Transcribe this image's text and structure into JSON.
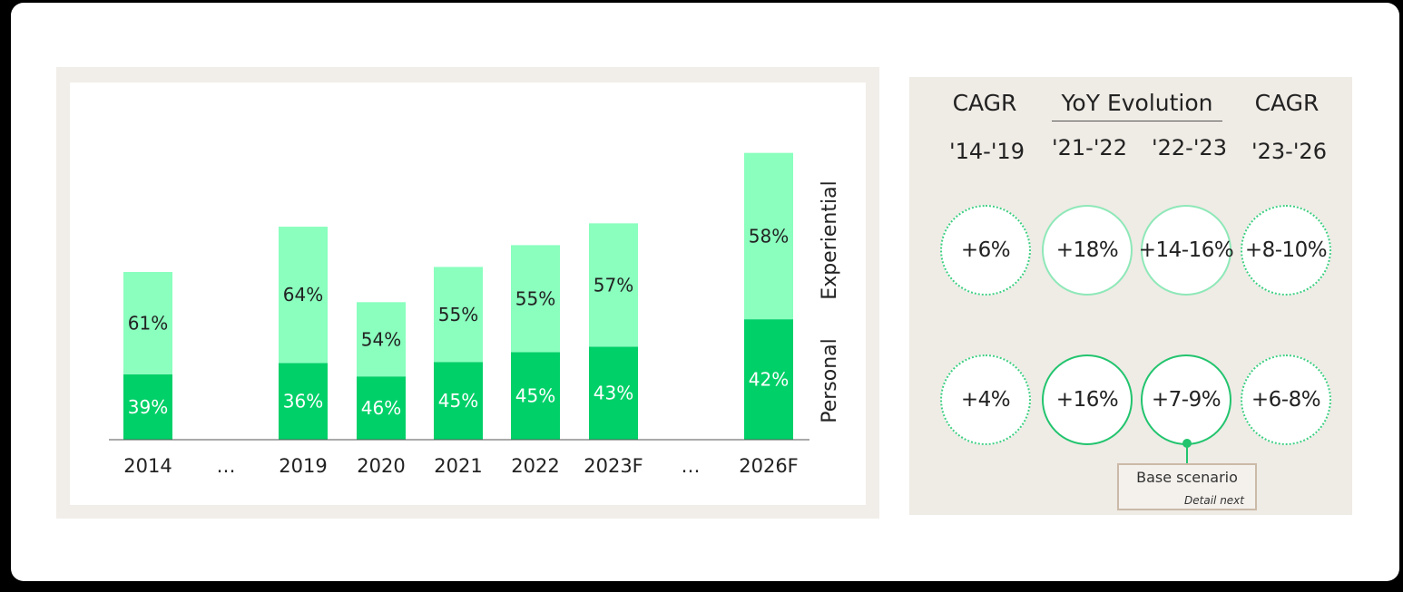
{
  "chart_data": {
    "type": "bar",
    "stacked": true,
    "categories": [
      "2014",
      "…",
      "2019",
      "2020",
      "2021",
      "2022",
      "2023F",
      "…",
      "2026F"
    ],
    "series": [
      {
        "name": "Personal",
        "color": "#00d068",
        "labels": [
          "39%",
          "",
          "36%",
          "46%",
          "45%",
          "45%",
          "43%",
          "",
          "42%"
        ],
        "values": [
          39,
          null,
          36,
          46,
          45,
          45,
          43,
          null,
          42
        ]
      },
      {
        "name": "Experiential",
        "color": "#8affbe",
        "labels": [
          "61%",
          "",
          "64%",
          "54%",
          "55%",
          "55%",
          "57%",
          "",
          "58%"
        ],
        "values": [
          61,
          null,
          64,
          54,
          55,
          55,
          57,
          null,
          58
        ]
      }
    ],
    "relative_totals": [
      100,
      null,
      127,
      82,
      103,
      116,
      129,
      null,
      171
    ],
    "title": "",
    "xlabel": "",
    "ylabel": ""
  },
  "stats": {
    "headers": {
      "cagr_left": "CAGR",
      "yoy": "YoY Evolution",
      "cagr_right": "CAGR"
    },
    "periods": [
      "'14-'19",
      "'21-'22",
      "'22-'23",
      "'23-'26"
    ],
    "experiential_row": [
      "+6%",
      "+18%",
      "+14-16%",
      "+8-10%"
    ],
    "personal_row": [
      "+4%",
      "+16%",
      "+7-9%",
      "+6-8%"
    ],
    "callout": {
      "label": "Base scenario",
      "note": "Detail next"
    }
  }
}
